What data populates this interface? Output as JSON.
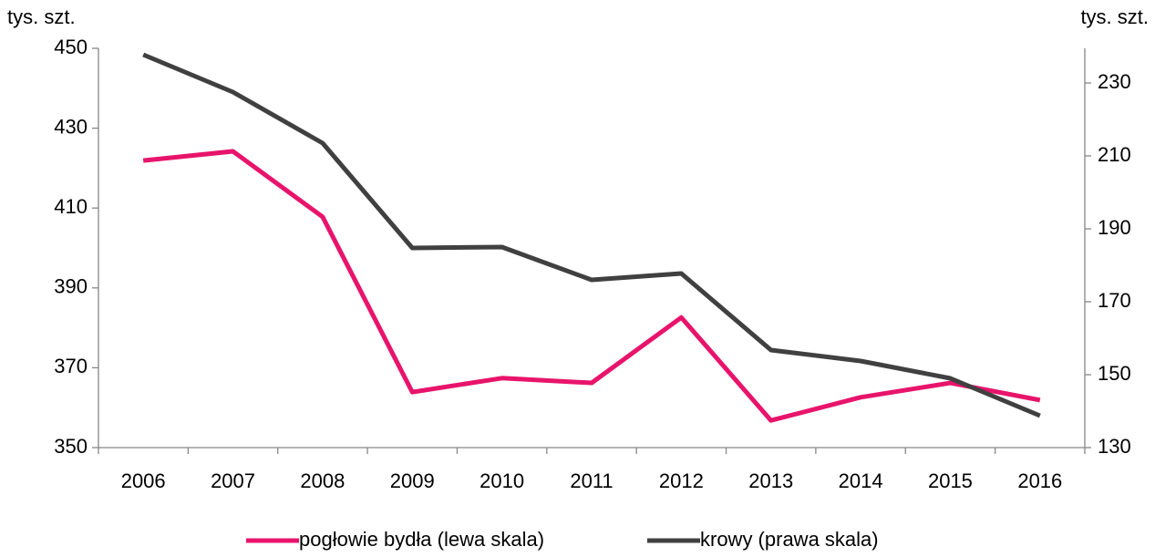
{
  "chart_data": {
    "type": "line",
    "y_label": "tys. szt.",
    "y2_label": "tys. szt.",
    "categories": [
      "2006",
      "2007",
      "2008",
      "2009",
      "2010",
      "2011",
      "2012",
      "2013",
      "2014",
      "2015",
      "2016"
    ],
    "series": [
      {
        "name": "pogłowie bydła (lewa skala)",
        "color": "#e8146c",
        "values": [
          421.9,
          424.2,
          407.8,
          363.9,
          367.4,
          366.2,
          382.6,
          356.8,
          362.6,
          366.2,
          361.9
        ]
      },
      {
        "name": "krowy  (prawa skala)",
        "color": "#404040",
        "axis": "y2",
        "values": [
          237.75,
          227.5,
          213.5,
          184.75,
          185,
          176,
          177.75,
          156.75,
          153.75,
          149,
          138.75
        ]
      }
    ],
    "ylim": [
      350,
      450
    ],
    "yticks": [
      350,
      370,
      390,
      410,
      430,
      450
    ],
    "y2lim": [
      130,
      239.5
    ],
    "y2ticks": [
      130,
      150,
      170,
      190,
      210,
      230
    ],
    "grid": false,
    "legend": "bottom"
  }
}
